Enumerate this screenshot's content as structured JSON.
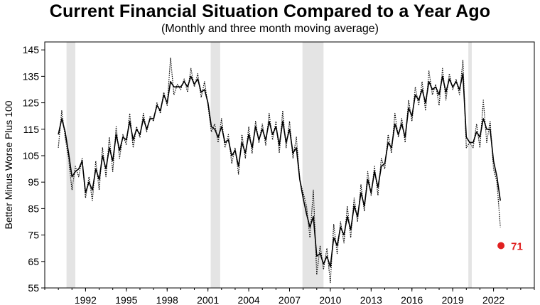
{
  "chart_data": {
    "type": "line",
    "title": "Current Financial Situation Compared to a Year Ago",
    "subtitle": "(Monthly and three month moving average)",
    "ylabel": "Better Minus Worse Plus 100",
    "xlabel": "",
    "ylim": [
      55,
      148
    ],
    "xlim": [
      1989.0,
      2025.0
    ],
    "y_ticks": [
      "55",
      "65",
      "75",
      "85",
      "95",
      "105",
      "115",
      "125",
      "135",
      "145"
    ],
    "x_ticks": [
      "1992",
      "1995",
      "1998",
      "2001",
      "2004",
      "2007",
      "2010",
      "2013",
      "2016",
      "2019",
      "2022"
    ],
    "recessions": [
      [
        1990.6,
        1991.25
      ],
      [
        2001.2,
        2001.9
      ],
      [
        2007.95,
        2009.5
      ],
      [
        2020.15,
        2020.4
      ]
    ],
    "series": [
      {
        "style": "dotted",
        "x": [
          1990.0,
          1990.25,
          1990.5,
          1990.75,
          1991.0,
          1991.25,
          1991.5,
          1991.75,
          1992.0,
          1992.25,
          1992.5,
          1992.75,
          1993.0,
          1993.25,
          1993.5,
          1993.75,
          1994.0,
          1994.25,
          1994.5,
          1994.75,
          1995.0,
          1995.25,
          1995.5,
          1995.75,
          1996.0,
          1996.25,
          1996.5,
          1996.75,
          1997.0,
          1997.25,
          1997.5,
          1997.75,
          1998.0,
          1998.25,
          1998.5,
          1998.75,
          1999.0,
          1999.25,
          1999.5,
          1999.75,
          2000.0,
          2000.25,
          2000.5,
          2000.75,
          2001.0,
          2001.25,
          2001.5,
          2001.75,
          2002.0,
          2002.25,
          2002.5,
          2002.75,
          2003.0,
          2003.25,
          2003.5,
          2003.75,
          2004.0,
          2004.25,
          2004.5,
          2004.75,
          2005.0,
          2005.25,
          2005.5,
          2005.75,
          2006.0,
          2006.25,
          2006.5,
          2006.75,
          2007.0,
          2007.25,
          2007.5,
          2007.75,
          2008.0,
          2008.25,
          2008.5,
          2008.75,
          2009.0,
          2009.25,
          2009.5,
          2009.75,
          2010.0,
          2010.25,
          2010.5,
          2010.75,
          2011.0,
          2011.25,
          2011.5,
          2011.75,
          2012.0,
          2012.25,
          2012.5,
          2012.75,
          2013.0,
          2013.25,
          2013.5,
          2013.75,
          2014.0,
          2014.25,
          2014.5,
          2014.75,
          2015.0,
          2015.25,
          2015.5,
          2015.75,
          2016.0,
          2016.25,
          2016.5,
          2016.75,
          2017.0,
          2017.25,
          2017.5,
          2017.75,
          2018.0,
          2018.25,
          2018.5,
          2018.75,
          2019.0,
          2019.25,
          2019.5,
          2019.75,
          2020.0,
          2020.25,
          2020.5,
          2020.75,
          2021.0,
          2021.25,
          2021.5,
          2021.75,
          2022.0,
          2022.25,
          2022.5
        ],
        "values": [
          108,
          122,
          112,
          104,
          92,
          101,
          97,
          104,
          89,
          97,
          88,
          103,
          92,
          108,
          97,
          112,
          99,
          116,
          104,
          113,
          109,
          121,
          108,
          116,
          112,
          121,
          114,
          120,
          118,
          125,
          121,
          129,
          124,
          142,
          128,
          132,
          130,
          134,
          129,
          138,
          131,
          136,
          127,
          133,
          124,
          114,
          117,
          110,
          119,
          108,
          113,
          102,
          108,
          98,
          113,
          104,
          116,
          106,
          118,
          110,
          117,
          109,
          121,
          111,
          118,
          106,
          122,
          108,
          118,
          104,
          112,
          96,
          91,
          86,
          74,
          92,
          60,
          71,
          62,
          70,
          57,
          79,
          68,
          80,
          72,
          86,
          74,
          89,
          80,
          94,
          84,
          99,
          90,
          101,
          90,
          104,
          100,
          113,
          106,
          121,
          112,
          119,
          110,
          126,
          118,
          131,
          124,
          133,
          122,
          137,
          128,
          132,
          124,
          138,
          126,
          136,
          130,
          134,
          128,
          141,
          108,
          110,
          108,
          117,
          108,
          126,
          110,
          118,
          100,
          95,
          78
        ]
      },
      {
        "style": "solid",
        "x": [
          1990.0,
          1990.25,
          1990.5,
          1990.75,
          1991.0,
          1991.25,
          1991.5,
          1991.75,
          1992.0,
          1992.25,
          1992.5,
          1992.75,
          1993.0,
          1993.25,
          1993.5,
          1993.75,
          1994.0,
          1994.25,
          1994.5,
          1994.75,
          1995.0,
          1995.25,
          1995.5,
          1995.75,
          1996.0,
          1996.25,
          1996.5,
          1996.75,
          1997.0,
          1997.25,
          1997.5,
          1997.75,
          1998.0,
          1998.25,
          1998.5,
          1998.75,
          1999.0,
          1999.25,
          1999.5,
          1999.75,
          2000.0,
          2000.25,
          2000.5,
          2000.75,
          2001.0,
          2001.25,
          2001.5,
          2001.75,
          2002.0,
          2002.25,
          2002.5,
          2002.75,
          2003.0,
          2003.25,
          2003.5,
          2003.75,
          2004.0,
          2004.25,
          2004.5,
          2004.75,
          2005.0,
          2005.25,
          2005.5,
          2005.75,
          2006.0,
          2006.25,
          2006.5,
          2006.75,
          2007.0,
          2007.25,
          2007.5,
          2007.75,
          2008.0,
          2008.25,
          2008.5,
          2008.75,
          2009.0,
          2009.25,
          2009.5,
          2009.75,
          2010.0,
          2010.25,
          2010.5,
          2010.75,
          2011.0,
          2011.25,
          2011.5,
          2011.75,
          2012.0,
          2012.25,
          2012.5,
          2012.75,
          2013.0,
          2013.25,
          2013.5,
          2013.75,
          2014.0,
          2014.25,
          2014.5,
          2014.75,
          2015.0,
          2015.25,
          2015.5,
          2015.75,
          2016.0,
          2016.25,
          2016.5,
          2016.75,
          2017.0,
          2017.25,
          2017.5,
          2017.75,
          2018.0,
          2018.25,
          2018.5,
          2018.75,
          2019.0,
          2019.25,
          2019.5,
          2019.75,
          2020.0,
          2020.25,
          2020.5,
          2020.75,
          2021.0,
          2021.25,
          2021.5,
          2021.75,
          2022.0,
          2022.25,
          2022.5
        ],
        "values": [
          113,
          119,
          114,
          106,
          97,
          99,
          100,
          103,
          91,
          95,
          92,
          100,
          96,
          105,
          100,
          108,
          103,
          113,
          107,
          112,
          111,
          118,
          111,
          115,
          113,
          119,
          115,
          119,
          119,
          124,
          122,
          128,
          125,
          133,
          131,
          131,
          131,
          133,
          131,
          135,
          132,
          134,
          129,
          130,
          125,
          116,
          115,
          112,
          116,
          110,
          111,
          105,
          107,
          101,
          110,
          106,
          113,
          108,
          116,
          111,
          115,
          111,
          118,
          113,
          116,
          109,
          118,
          110,
          115,
          106,
          108,
          96,
          89,
          83,
          78,
          82,
          67,
          68,
          64,
          67,
          63,
          74,
          71,
          78,
          75,
          82,
          77,
          86,
          82,
          91,
          86,
          96,
          91,
          99,
          93,
          101,
          102,
          110,
          108,
          117,
          113,
          117,
          112,
          123,
          120,
          128,
          126,
          130,
          125,
          133,
          130,
          131,
          128,
          135,
          129,
          134,
          131,
          133,
          130,
          136,
          112,
          110,
          110,
          114,
          112,
          119,
          115,
          115,
          103,
          97,
          88
        ]
      }
    ],
    "last_point": {
      "x": 2022.55,
      "value": 71,
      "label": "71",
      "color": "#e02020"
    },
    "colors": {
      "recession": "#e4e4e4",
      "line": "#000000"
    }
  }
}
